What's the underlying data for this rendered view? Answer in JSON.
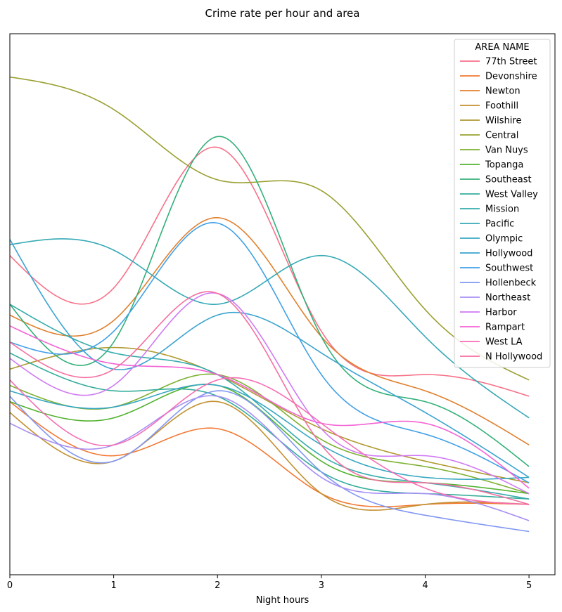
{
  "chart_data": {
    "type": "line",
    "title": "Crime rate per hour and area",
    "xlabel": "Night hours",
    "ylabel": "",
    "x_ticks": [
      0,
      1,
      2,
      3,
      4,
      5
    ],
    "x": [
      0,
      1,
      2,
      3,
      4,
      5
    ],
    "xlim": [
      0,
      5.25
    ],
    "ylim": [
      0,
      100
    ],
    "smooth": true,
    "y_ticks_visible": false,
    "grid": false,
    "legend": {
      "title": "AREA NAME",
      "placement": "top-right"
    },
    "series": [
      {
        "name": "77th Street",
        "color": "#f77189",
        "values": [
          59,
          53,
          79,
          45,
          37,
          33
        ]
      },
      {
        "name": "Devonshire",
        "color": "#f37932",
        "values": [
          32,
          22,
          27,
          15,
          13,
          13
        ]
      },
      {
        "name": "Newton",
        "color": "#e0802e",
        "values": [
          48,
          47,
          66,
          44,
          34,
          24
        ]
      },
      {
        "name": "Foothill",
        "color": "#c29030",
        "values": [
          30,
          21,
          32,
          15,
          13,
          13
        ]
      },
      {
        "name": "Wilshire",
        "color": "#b09a31",
        "values": [
          38,
          42,
          37,
          27,
          21,
          17
        ]
      },
      {
        "name": "Central",
        "color": "#9aa031",
        "values": [
          92,
          86,
          73,
          71,
          49,
          36
        ]
      },
      {
        "name": "Van Nuys",
        "color": "#7eb133",
        "values": [
          35,
          31,
          37,
          25,
          20,
          15
        ]
      },
      {
        "name": "Topanga",
        "color": "#52b231",
        "values": [
          32,
          29,
          35,
          21,
          17,
          15
        ]
      },
      {
        "name": "Southeast",
        "color": "#33b07a",
        "values": [
          50,
          43,
          81,
          44,
          32,
          20
        ]
      },
      {
        "name": "West Valley",
        "color": "#35ad9c",
        "values": [
          41,
          34,
          33,
          19,
          15,
          14
        ]
      },
      {
        "name": "Mission",
        "color": "#36abac",
        "values": [
          50,
          41,
          37,
          22,
          17,
          14
        ]
      },
      {
        "name": "Pacific",
        "color": "#36a9b6",
        "values": [
          61,
          60,
          50,
          59,
          44,
          29
        ]
      },
      {
        "name": "Olympic",
        "color": "#38a7c2",
        "values": [
          34,
          31,
          35,
          24,
          18,
          18
        ]
      },
      {
        "name": "Hollywood",
        "color": "#3ba3d0",
        "values": [
          62,
          38,
          48,
          41,
          30,
          18
        ]
      },
      {
        "name": "Southwest",
        "color": "#41a0e7",
        "values": [
          43,
          45,
          65,
          37,
          26,
          17
        ]
      },
      {
        "name": "Hollenbeck",
        "color": "#8197f2",
        "values": [
          33,
          21,
          34,
          19,
          11,
          8
        ]
      },
      {
        "name": "Northeast",
        "color": "#a78ef4",
        "values": [
          28,
          24,
          33,
          18,
          15,
          10
        ]
      },
      {
        "name": "Harbor",
        "color": "#d179f4",
        "values": [
          40,
          35,
          52,
          27,
          22,
          15
        ]
      },
      {
        "name": "Rampart",
        "color": "#f362d5",
        "values": [
          46,
          39,
          37,
          28,
          28,
          16
        ]
      },
      {
        "name": "West LA",
        "color": "#f66eb6",
        "values": [
          36,
          24,
          36,
          28,
          16,
          13
        ]
      },
      {
        "name": "N Hollywood",
        "color": "#f56fa1",
        "values": [
          43,
          38,
          52,
          24,
          17,
          13
        ]
      }
    ]
  }
}
